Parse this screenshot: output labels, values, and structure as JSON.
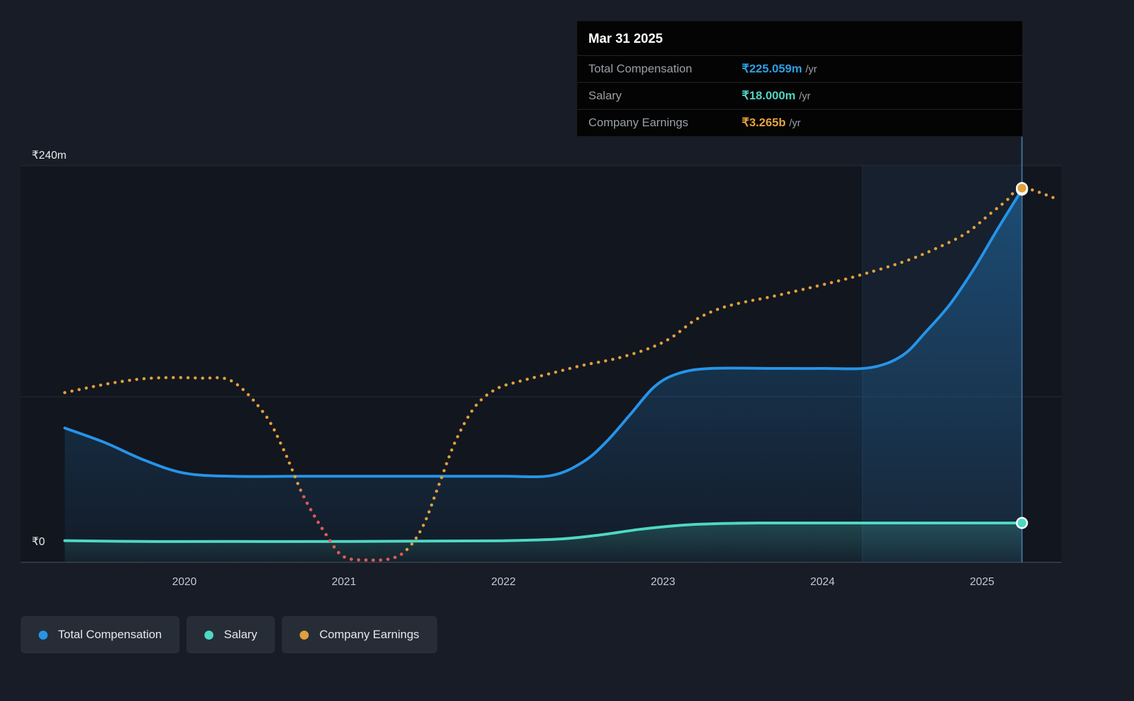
{
  "tooltip": {
    "title": "Mar 31 2025",
    "rows": [
      {
        "label": "Total Compensation",
        "value": "₹225.059m",
        "suffix": "/yr",
        "color": "#2e9fe6"
      },
      {
        "label": "Salary",
        "value": "₹18.000m",
        "suffix": "/yr",
        "color": "#4ed5c2"
      },
      {
        "label": "Company Earnings",
        "value": "₹3.265b",
        "suffix": "/yr",
        "color": "#e6a23c"
      }
    ]
  },
  "legend": [
    {
      "label": "Total Compensation",
      "color": "#2694e8"
    },
    {
      "label": "Salary",
      "color": "#4fd8c4"
    },
    {
      "label": "Company Earnings",
      "color": "#e0a03c"
    }
  ],
  "colors": {
    "background": "#171c26",
    "plot_background": "#12161f",
    "gridline": "#262d39",
    "axis_line": "#39414e",
    "highlight_band": "rgba(56,130,190,0.10)",
    "crosshair": "#3f6f99",
    "y_tick_label": "#e9ebee",
    "x_tick_label": "#c4c9d1",
    "negative_segment": "#e25757"
  },
  "chart_data": {
    "type": "line",
    "x_ticks": [
      2020,
      2021,
      2022,
      2023,
      2024,
      2025
    ],
    "y_ticks": [
      {
        "value": 240,
        "label": "₹240m"
      },
      {
        "value": 0,
        "label": "₹0"
      }
    ],
    "ylim": [
      0,
      240
    ],
    "xlim": [
      2019.2,
      2025.5
    ],
    "grid": true,
    "legend_position": "bottom-left",
    "highlight_band": {
      "from": 2024.25,
      "to": 2025.25
    },
    "crosshair_x": 2025.25,
    "series": [
      {
        "name": "Total Compensation",
        "color": "#2694e8",
        "line_style": "solid",
        "area": true,
        "end_marker": true,
        "end_value_label": "₹225.059m /yr",
        "points": [
          [
            2019.25,
            77
          ],
          [
            2019.5,
            68
          ],
          [
            2019.75,
            57
          ],
          [
            2020,
            49
          ],
          [
            2020.3,
            47
          ],
          [
            2020.7,
            47
          ],
          [
            2021.1,
            47
          ],
          [
            2021.6,
            47
          ],
          [
            2022,
            47
          ],
          [
            2022.3,
            47.5
          ],
          [
            2022.5,
            56
          ],
          [
            2022.65,
            69
          ],
          [
            2022.8,
            86
          ],
          [
            2022.95,
            103
          ],
          [
            2023.1,
            111
          ],
          [
            2023.3,
            114
          ],
          [
            2023.7,
            114
          ],
          [
            2024,
            114
          ],
          [
            2024.3,
            114.5
          ],
          [
            2024.5,
            122
          ],
          [
            2024.65,
            137
          ],
          [
            2024.8,
            154
          ],
          [
            2024.95,
            176
          ],
          [
            2025.1,
            201
          ],
          [
            2025.25,
            225.059
          ]
        ]
      },
      {
        "name": "Salary",
        "color": "#4fd8c4",
        "line_style": "solid",
        "area": true,
        "end_marker": true,
        "end_value_label": "₹18.000m /yr",
        "points": [
          [
            2019.25,
            7
          ],
          [
            2019.75,
            6.5
          ],
          [
            2020.3,
            6.5
          ],
          [
            2021,
            6.5
          ],
          [
            2021.6,
            6.8
          ],
          [
            2022,
            7
          ],
          [
            2022.35,
            8
          ],
          [
            2022.6,
            10.5
          ],
          [
            2022.85,
            14
          ],
          [
            2023.1,
            16.5
          ],
          [
            2023.3,
            17.5
          ],
          [
            2023.6,
            18
          ],
          [
            2024,
            18
          ],
          [
            2024.5,
            18
          ],
          [
            2025,
            18
          ],
          [
            2025.25,
            18
          ]
        ]
      },
      {
        "name": "Company Earnings",
        "color": "#e0a03c",
        "line_style": "dotted",
        "area": false,
        "end_marker": true,
        "end_value_label": "₹3.265b /yr",
        "axis": "secondary (unlabeled, values plotted on display scale)",
        "negative_color": "#e25757",
        "negative_range": [
          2020.73,
          2021.38
        ],
        "points": [
          [
            2019.25,
            99
          ],
          [
            2019.55,
            105
          ],
          [
            2019.8,
            108
          ],
          [
            2020.1,
            108
          ],
          [
            2020.3,
            106
          ],
          [
            2020.5,
            86
          ],
          [
            2020.62,
            64
          ],
          [
            2020.75,
            34
          ],
          [
            2020.9,
            9
          ],
          [
            2021.0,
            -3
          ],
          [
            2021.15,
            -5
          ],
          [
            2021.3,
            -4
          ],
          [
            2021.4,
            2
          ],
          [
            2021.5,
            17
          ],
          [
            2021.6,
            43
          ],
          [
            2021.7,
            69
          ],
          [
            2021.82,
            90
          ],
          [
            2021.95,
            101
          ],
          [
            2022.1,
            106
          ],
          [
            2022.3,
            111
          ],
          [
            2022.5,
            116
          ],
          [
            2022.7,
            120
          ],
          [
            2022.9,
            126
          ],
          [
            2023.05,
            133
          ],
          [
            2023.2,
            144
          ],
          [
            2023.35,
            151
          ],
          [
            2023.5,
            155
          ],
          [
            2023.7,
            159
          ],
          [
            2024.0,
            166
          ],
          [
            2024.2,
            171
          ],
          [
            2024.5,
            180
          ],
          [
            2024.7,
            188
          ],
          [
            2024.9,
            198
          ],
          [
            2025.05,
            210
          ],
          [
            2025.15,
            218
          ],
          [
            2025.25,
            226
          ],
          [
            2025.45,
            220
          ]
        ]
      }
    ]
  }
}
